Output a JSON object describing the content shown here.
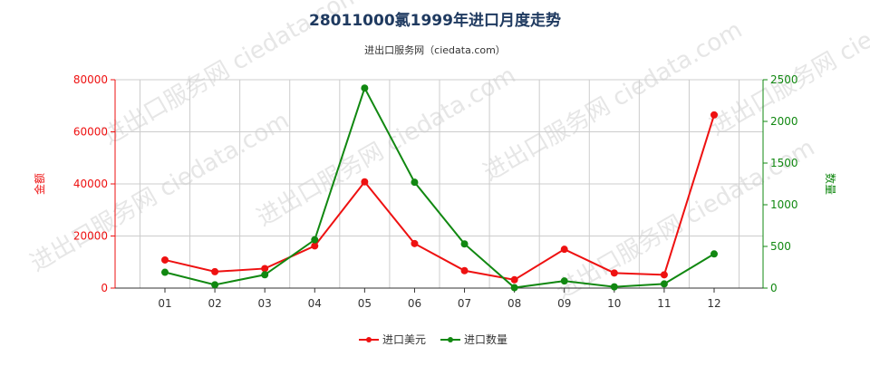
{
  "title": "28011000氯1999年进口月度走势",
  "subtitle": "进出口服务网（ciedata.com）",
  "watermark": "进出口服务网 ciedata.com",
  "legend": {
    "series1": "进口美元",
    "series2": "进口数量"
  },
  "colors": {
    "series1": "#ee1111",
    "series2": "#118811",
    "title": "#1f3a60",
    "grid": "#cccccc"
  },
  "chart_data": {
    "type": "line",
    "categories": [
      "01",
      "02",
      "03",
      "04",
      "05",
      "06",
      "07",
      "08",
      "09",
      "10",
      "11",
      "12"
    ],
    "series": [
      {
        "name": "进口美元",
        "axis": "left",
        "values": [
          10800,
          6300,
          7500,
          16200,
          40800,
          17100,
          6700,
          3200,
          14900,
          5800,
          5100,
          66500
        ]
      },
      {
        "name": "进口数量",
        "axis": "right",
        "values": [
          190,
          40,
          160,
          580,
          2400,
          1270,
          530,
          5,
          85,
          15,
          50,
          410
        ]
      }
    ],
    "y_left": {
      "label": "金额",
      "ylim": [
        0,
        80000
      ],
      "ticks": [
        "0",
        "20000",
        "40000",
        "60000",
        "80000"
      ]
    },
    "y_right": {
      "label": "数量",
      "ylim": [
        0,
        2500
      ],
      "ticks": [
        "0",
        "500",
        "1000",
        "1500",
        "2000",
        "2500"
      ]
    },
    "grid": true,
    "legend_position": "bottom"
  }
}
